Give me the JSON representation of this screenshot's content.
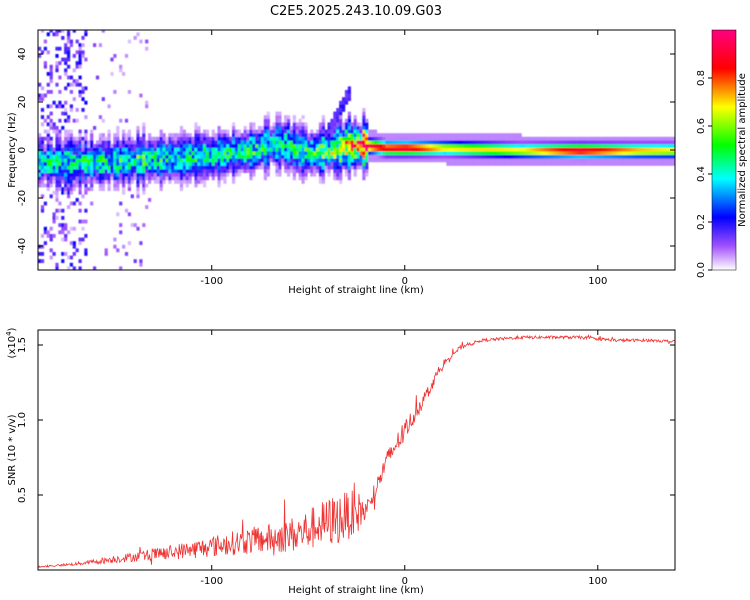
{
  "figure_title": "C2E5.2025.243.10.09.G03",
  "chart_data": [
    {
      "type": "heatmap",
      "title": "",
      "xlabel": "Height of straight line (km)",
      "ylabel": "Frequency (Hz)",
      "xlim": [
        -190,
        140
      ],
      "ylim": [
        -50,
        50
      ],
      "x_ticks": [
        -100,
        0,
        100
      ],
      "y_ticks": [
        -40,
        -20,
        0,
        20,
        40
      ],
      "colorbar": {
        "label": "Normalized spectral amplitude",
        "range": [
          0,
          1
        ],
        "ticks": [
          "0.0",
          "0.2",
          "0.4",
          "0.6",
          "0.8"
        ],
        "tick_values": [
          0.0,
          0.2,
          0.4,
          0.6,
          0.8
        ],
        "colors": [
          "#ffffff",
          "#a050ff",
          "#0000ff",
          "#00ffff",
          "#00ff00",
          "#ffff00",
          "#ff0000",
          "#ff0080"
        ]
      },
      "ridge": {
        "description": "narrow-band frequency ridge near 0 Hz",
        "x": [
          -160,
          -140,
          -120,
          -100,
          -80,
          -65,
          -50,
          -40,
          -30,
          -20,
          -10,
          0,
          20,
          60,
          90,
          120,
          140
        ],
        "center_hz": [
          -6,
          -5,
          -4,
          -3,
          -1,
          2,
          -2,
          -1,
          1,
          1,
          0,
          0,
          0,
          -1,
          -1,
          -1,
          -1
        ],
        "peak_amplitude": [
          0.4,
          0.45,
          0.4,
          0.4,
          0.45,
          0.4,
          0.45,
          0.5,
          0.7,
          0.95,
          0.9,
          0.95,
          0.7,
          0.7,
          0.95,
          0.75,
          0.7
        ]
      }
    },
    {
      "type": "line",
      "title": "",
      "xlabel": "Height of straight line (km)",
      "ylabel": "SNR (10 * v/v)",
      "y_scale_label": "(x10",
      "y_scale_exp": "4",
      "xlim": [
        -190,
        140
      ],
      "ylim": [
        0,
        16000
      ],
      "x_ticks": [
        -100,
        0,
        100
      ],
      "y_ticks": [
        5000,
        10000,
        15000
      ],
      "y_tick_labels": [
        "0.5",
        "1.0",
        "1.5"
      ],
      "series": [
        {
          "name": "SNR",
          "color": "#ee3333",
          "x": [
            -190,
            -170,
            -150,
            -130,
            -110,
            -90,
            -70,
            -55,
            -45,
            -35,
            -25,
            -20,
            -15,
            -10,
            -5,
            0,
            5,
            10,
            15,
            20,
            25,
            30,
            40,
            50,
            60,
            70,
            80,
            90,
            100,
            110,
            120,
            130,
            140
          ],
          "values": [
            200,
            400,
            700,
            1000,
            1300,
            1700,
            2000,
            2300,
            2800,
            3200,
            3700,
            3900,
            5300,
            7000,
            8200,
            9200,
            10300,
            11400,
            12600,
            13700,
            14400,
            14900,
            15300,
            15400,
            15500,
            15500,
            15500,
            15500,
            15400,
            15300,
            15300,
            15300,
            15200
          ],
          "noise_amplitude": [
            80,
            200,
            500,
            800,
            1200,
            1600,
            2000,
            2500,
            3000,
            3500,
            3000,
            1500,
            1200,
            1400,
            1400,
            1300,
            1200,
            1000,
            800,
            600,
            400,
            300,
            200,
            200,
            200,
            200,
            200,
            200,
            200,
            200,
            200,
            200,
            200
          ]
        }
      ]
    }
  ]
}
